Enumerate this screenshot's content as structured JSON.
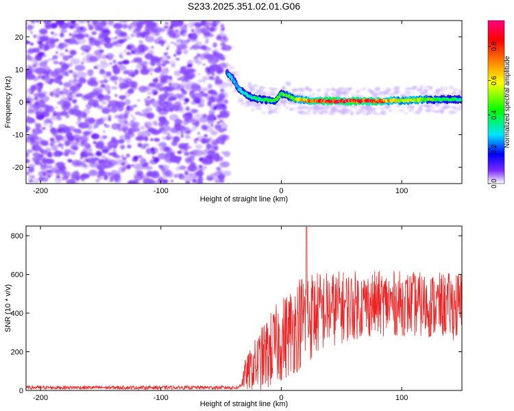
{
  "title": "S233.2025.351.02.01.G06",
  "chart_data": [
    {
      "type": "heatmap",
      "xlabel": "Height of straight line (km)",
      "ylabel": "Frequency (Hz)",
      "xlim": [
        -212,
        150
      ],
      "ylim": [
        -25,
        25
      ],
      "xticks": [
        -200,
        -100,
        0,
        100
      ],
      "yticks": [
        -20,
        -10,
        0,
        10,
        20
      ],
      "colorbar": {
        "label": "Normalized spectral amplitude",
        "range": [
          0,
          0.95
        ],
        "ticks": [
          0.0,
          0.2,
          0.4,
          0.6,
          0.8
        ],
        "colors": [
          "#ffffff",
          "#7b2bff",
          "#0000ff",
          "#00e5ff",
          "#00ff00",
          "#ffff00",
          "#ff8000",
          "#ff0000",
          "#ff0080"
        ]
      },
      "noise_region": {
        "x": [
          -212,
          -45
        ],
        "freq": [
          -25,
          25
        ],
        "amplitude": 0.1
      },
      "signal_trace": {
        "x": [
          -45,
          -40,
          -35,
          -30,
          -25,
          -20,
          -15,
          -10,
          -5,
          0,
          5,
          10,
          20,
          30,
          40,
          50,
          60,
          70,
          80,
          90,
          100,
          110,
          120,
          130,
          140,
          150
        ],
        "freq": [
          9,
          7,
          4,
          2.5,
          1.5,
          1,
          0.8,
          0.5,
          0.5,
          2.5,
          2,
          1,
          0.5,
          0.3,
          0.3,
          0.3,
          0.3,
          0.3,
          0.3,
          0.4,
          0.5,
          0.6,
          0.8,
          0.8,
          0.8,
          0.8
        ],
        "amplitude": [
          0.25,
          0.3,
          0.3,
          0.35,
          0.35,
          0.4,
          0.4,
          0.45,
          0.45,
          0.45,
          0.5,
          0.55,
          0.7,
          0.85,
          0.9,
          0.9,
          0.9,
          0.85,
          0.85,
          0.7,
          0.6,
          0.6,
          0.55,
          0.45,
          0.4,
          0.35
        ]
      }
    },
    {
      "type": "line",
      "xlabel": "Height of straight line (km)",
      "ylabel": "SNR (10 * v/v)",
      "xlim": [
        -212,
        150
      ],
      "ylim": [
        0,
        850
      ],
      "xticks": [
        -200,
        -100,
        0,
        100
      ],
      "yticks": [
        0,
        200,
        400,
        600,
        800
      ],
      "series": [
        {
          "color": "#ee2222",
          "noise_floor": {
            "x": [
              -212,
              -35
            ],
            "value": 15,
            "jitter": 15
          },
          "envelope_x": [
            -35,
            -30,
            -20,
            -10,
            0,
            10,
            20,
            30,
            40,
            60,
            80,
            100,
            120,
            140,
            150
          ],
          "envelope_mean": [
            20,
            80,
            140,
            200,
            260,
            320,
            380,
            400,
            420,
            440,
            450,
            450,
            440,
            440,
            430
          ],
          "envelope_spread": [
            10,
            80,
            150,
            200,
            220,
            240,
            260,
            220,
            200,
            180,
            170,
            170,
            170,
            170,
            200
          ],
          "max_peak": {
            "x": 21,
            "y": 845
          }
        }
      ]
    }
  ]
}
